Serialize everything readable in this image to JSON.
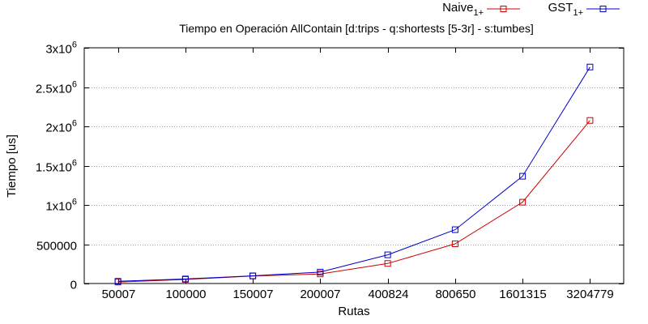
{
  "chart_data": {
    "type": "line",
    "title": "Tiempo en Operación AllContain [d:trips - q:shortests [5-3r] - s:tumbes]",
    "xlabel": "Rutas",
    "ylabel": "Tiempo [us]",
    "categories": [
      "50007",
      "100000",
      "150007",
      "200007",
      "400824",
      "800650",
      "1601315",
      "3204779"
    ],
    "ylim": [
      0,
      3000000
    ],
    "yticks": [
      {
        "value": 0,
        "base": "0",
        "exp": ""
      },
      {
        "value": 500000,
        "base": "500000",
        "exp": ""
      },
      {
        "value": 1000000,
        "base": "1x10",
        "exp": "6"
      },
      {
        "value": 1500000,
        "base": "1.5x10",
        "exp": "6"
      },
      {
        "value": 2000000,
        "base": "2x10",
        "exp": "6"
      },
      {
        "value": 2500000,
        "base": "2.5x10",
        "exp": "6"
      },
      {
        "value": 3000000,
        "base": "3x10",
        "exp": "6"
      }
    ],
    "grid": "horizontal-dotted",
    "legend_position": "top-right",
    "series": [
      {
        "name": "Naive",
        "subscript": "1+",
        "color": "#cc0000",
        "values": [
          18000,
          52000,
          95000,
          122000,
          255000,
          505000,
          1035000,
          2075000
        ]
      },
      {
        "name": "GST",
        "subscript": "1+",
        "color": "#0000cc",
        "values": [
          28000,
          58000,
          98000,
          145000,
          365000,
          685000,
          1365000,
          2755000
        ]
      }
    ]
  }
}
